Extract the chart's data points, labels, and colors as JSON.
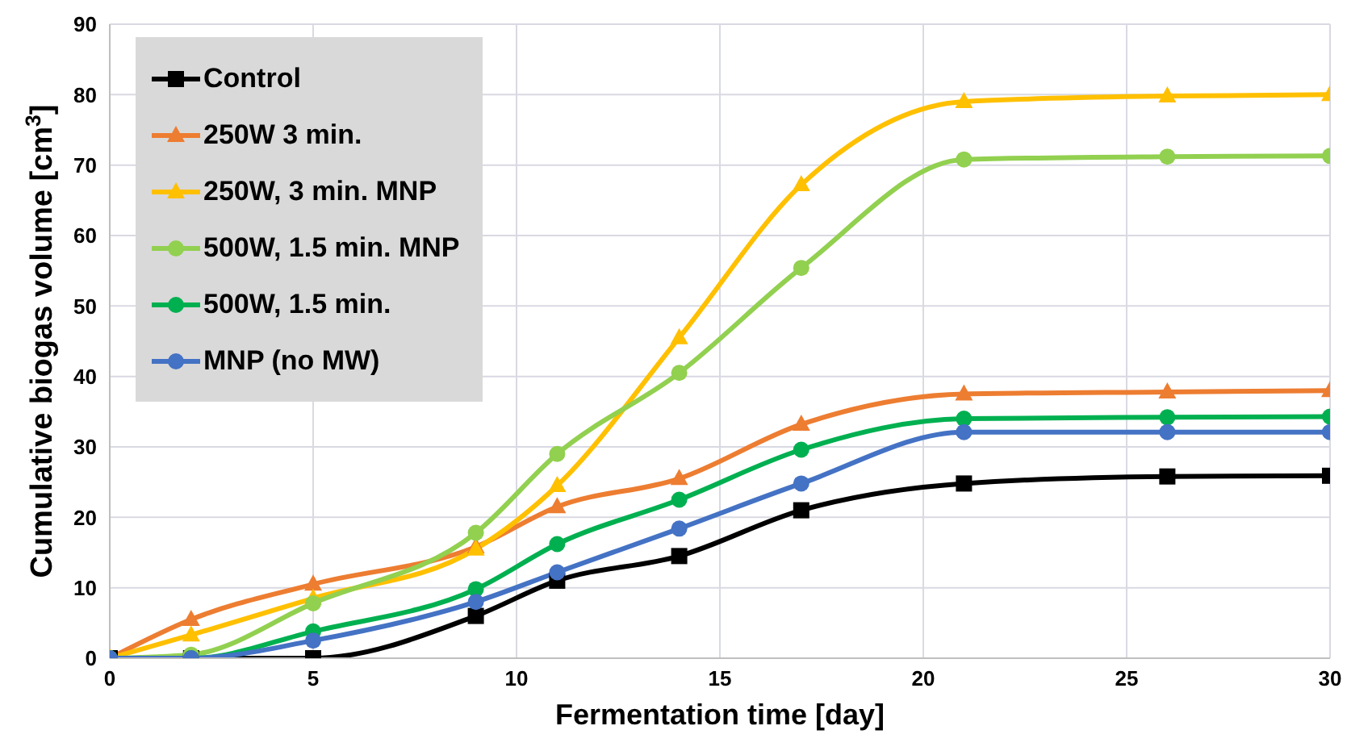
{
  "chart_data": {
    "type": "line",
    "xlabel": "Fermentation time [day]",
    "ylabel": "Cumulative biogas volume [cm$^{3}$]",
    "x": [
      0,
      2,
      5,
      9,
      11,
      14,
      17,
      21,
      26,
      30
    ],
    "xlim": [
      0,
      30
    ],
    "xticks": [
      0,
      5,
      10,
      15,
      20,
      25,
      30
    ],
    "ylim": [
      0,
      90
    ],
    "yticks": [
      0,
      10,
      20,
      30,
      40,
      50,
      60,
      70,
      80,
      90
    ],
    "grid": true,
    "legend": "top left",
    "line_style": "solid",
    "series": [
      {
        "name": "Control",
        "color": "#000000",
        "marker": "square",
        "values": [
          0,
          0,
          0,
          6,
          11,
          14.5,
          21,
          24.8,
          25.8,
          25.9
        ]
      },
      {
        "name": "250W 3 min.",
        "color": "#ed7d31",
        "marker": "triangle",
        "values": [
          0,
          5.5,
          10.5,
          15.8,
          21.5,
          25.5,
          33.2,
          37.5,
          37.8,
          38
        ]
      },
      {
        "name": "250W, 3 min. MNP",
        "color": "#ffc000",
        "marker": "triangle",
        "values": [
          0,
          3.3,
          8.5,
          15.5,
          24.5,
          45.5,
          67.2,
          79,
          79.8,
          80
        ]
      },
      {
        "name": "500W, 1.5 min. MNP",
        "color": "#92d050",
        "marker": "circle",
        "values": [
          0,
          0.5,
          7.8,
          17.8,
          29,
          40.5,
          55.4,
          70.8,
          71.2,
          71.3
        ]
      },
      {
        "name": "500W, 1.5 min.",
        "color": "#00b050",
        "marker": "circle",
        "values": [
          0,
          0,
          3.8,
          9.8,
          16.2,
          22.5,
          29.6,
          34,
          34.2,
          34.3
        ]
      },
      {
        "name": "MNP (no MW)",
        "color": "#4472c4",
        "marker": "circle",
        "values": [
          0,
          0,
          2.5,
          8,
          12.2,
          18.4,
          24.8,
          32.1,
          32.1,
          32.1
        ]
      }
    ]
  }
}
